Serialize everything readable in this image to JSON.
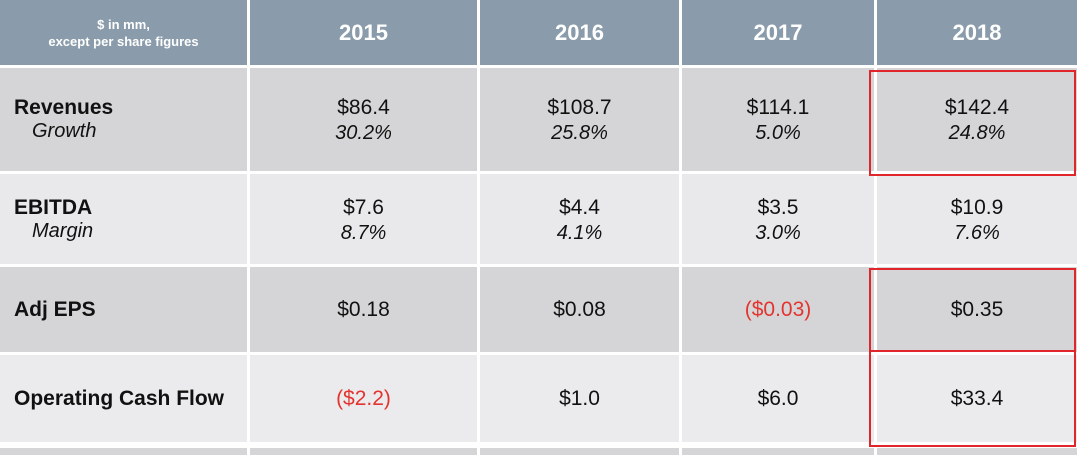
{
  "table": {
    "header": {
      "note": [
        "$ in mm,",
        "except per share figures"
      ],
      "years": [
        "2015",
        "2016",
        "2017",
        "2018"
      ]
    },
    "rows": [
      {
        "label": "Revenues",
        "sublabel": "Growth",
        "values": [
          {
            "text": "$86.4"
          },
          {
            "text": "$108.7"
          },
          {
            "text": "$114.1"
          },
          {
            "text": "$142.4"
          }
        ],
        "subvalues": [
          "30.2%",
          "25.8%",
          "5.0%",
          "24.8%"
        ]
      },
      {
        "label": "EBITDA",
        "sublabel": "Margin",
        "values": [
          {
            "text": "$7.6"
          },
          {
            "text": "$4.4"
          },
          {
            "text": "$3.5"
          },
          {
            "text": "$10.9"
          }
        ],
        "subvalues": [
          "8.7%",
          "4.1%",
          "3.0%",
          "7.6%"
        ]
      },
      {
        "label": "Adj EPS",
        "values": [
          {
            "text": "$0.18"
          },
          {
            "text": "$0.08"
          },
          {
            "text": "($0.03)",
            "color": "#e3342f"
          },
          {
            "text": "$0.35"
          }
        ]
      },
      {
        "label": "Operating Cash Flow",
        "values": [
          {
            "text": "($2.2)",
            "color": "#e3342f"
          },
          {
            "text": "$1.0"
          },
          {
            "text": "$6.0"
          },
          {
            "text": "$33.4"
          }
        ]
      }
    ]
  }
}
